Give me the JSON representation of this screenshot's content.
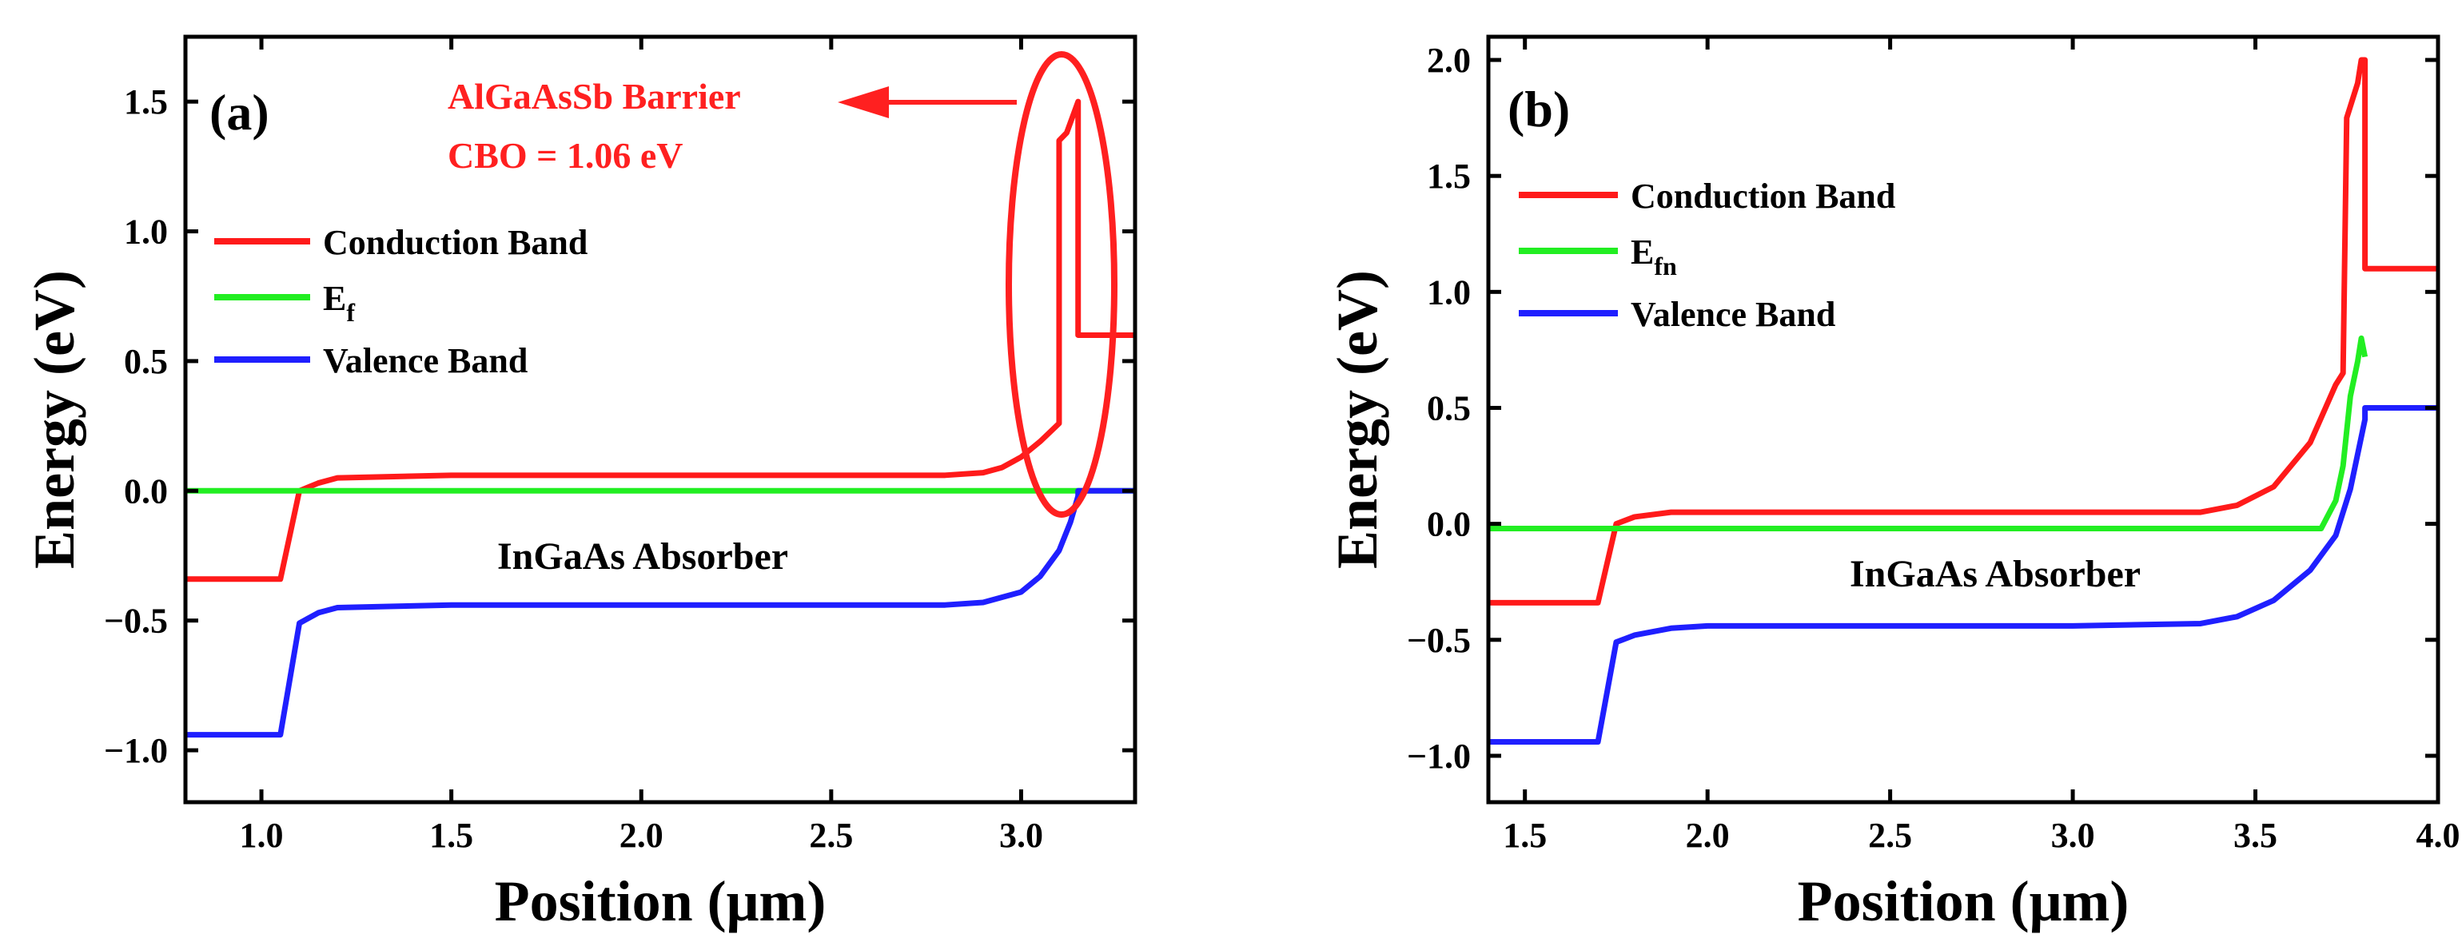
{
  "colors": {
    "conduction": "#ff1a1a",
    "fermi": "#22ee22",
    "valence": "#1f1fff",
    "annotation": "#ff2020"
  },
  "chart_data": [
    {
      "type": "line",
      "panel": "(a)",
      "xlabel": "Position (μm)",
      "ylabel": "Energy (eV)",
      "xlim": [
        0.8,
        3.3
      ],
      "ylim": [
        -1.2,
        1.75
      ],
      "xticks": [
        "1.0",
        "1.5",
        "2.0",
        "2.5",
        "3.0"
      ],
      "xtick_values": [
        1.0,
        1.5,
        2.0,
        2.5,
        3.0
      ],
      "yticks": [
        "−1.0",
        "−0.5",
        "0.0",
        "0.5",
        "1.0",
        "1.5"
      ],
      "ytick_values": [
        -1.0,
        -0.5,
        0.0,
        0.5,
        1.0,
        1.5
      ],
      "legend": {
        "conduction": "Conduction Band",
        "fermi_main": "E",
        "fermi_sub": "f",
        "valence": "Valence Band"
      },
      "annotations": {
        "region": "InGaAs Absorber",
        "barrier_line1": "AlGaAsSb Barrier",
        "barrier_line2": "CBO = 1.06 eV"
      },
      "series": [
        {
          "name": "Conduction Band",
          "color_key": "conduction",
          "x": [
            0.8,
            1.05,
            1.1,
            1.15,
            1.2,
            1.5,
            2.0,
            2.5,
            2.8,
            2.9,
            2.95,
            3.0,
            3.05,
            3.1,
            3.1,
            3.12,
            3.13,
            3.15,
            3.15,
            3.3
          ],
          "y": [
            -0.34,
            -0.34,
            0.0,
            0.03,
            0.05,
            0.06,
            0.06,
            0.06,
            0.06,
            0.07,
            0.09,
            0.13,
            0.19,
            0.26,
            1.35,
            1.38,
            1.42,
            1.5,
            0.6,
            0.6
          ]
        },
        {
          "name": "Ef",
          "color_key": "fermi",
          "x": [
            0.8,
            3.3
          ],
          "y": [
            0.0,
            0.0
          ]
        },
        {
          "name": "Valence Band",
          "color_key": "valence",
          "x": [
            0.8,
            1.05,
            1.1,
            1.15,
            1.2,
            1.5,
            2.0,
            2.5,
            2.8,
            2.9,
            3.0,
            3.05,
            3.1,
            3.13,
            3.15,
            3.15,
            3.3
          ],
          "y": [
            -0.94,
            -0.94,
            -0.51,
            -0.47,
            -0.45,
            -0.44,
            -0.44,
            -0.44,
            -0.44,
            -0.43,
            -0.39,
            -0.33,
            -0.23,
            -0.12,
            -0.02,
            0.0,
            0.0
          ]
        }
      ]
    },
    {
      "type": "line",
      "panel": "(b)",
      "xlabel": "Position (μm)",
      "ylabel": "Energy (eV)",
      "xlim": [
        1.4,
        4.0
      ],
      "ylim": [
        -1.2,
        2.1
      ],
      "xticks": [
        "1.5",
        "2.0",
        "2.5",
        "3.0",
        "3.5",
        "4.0"
      ],
      "xtick_values": [
        1.5,
        2.0,
        2.5,
        3.0,
        3.5,
        4.0
      ],
      "yticks": [
        "−1.0",
        "−0.5",
        "0.0",
        "0.5",
        "1.0",
        "1.5",
        "2.0"
      ],
      "ytick_values": [
        -1.0,
        -0.5,
        0.0,
        0.5,
        1.0,
        1.5,
        2.0
      ],
      "legend": {
        "conduction": "Conduction Band",
        "fermi_main": "E",
        "fermi_sub": "fn",
        "valence": "Valence Band"
      },
      "annotations": {
        "region": "InGaAs Absorber"
      },
      "series": [
        {
          "name": "Conduction Band",
          "color_key": "conduction",
          "x": [
            1.4,
            1.7,
            1.75,
            1.8,
            1.9,
            2.0,
            2.5,
            3.0,
            3.35,
            3.45,
            3.55,
            3.65,
            3.72,
            3.74,
            3.75,
            3.78,
            3.79,
            3.8,
            3.8,
            4.0
          ],
          "y": [
            -0.34,
            -0.34,
            0.0,
            0.03,
            0.05,
            0.05,
            0.05,
            0.05,
            0.05,
            0.08,
            0.16,
            0.35,
            0.6,
            0.65,
            1.75,
            1.9,
            2.0,
            2.0,
            1.1,
            1.1
          ]
        },
        {
          "name": "Efn",
          "color_key": "fermi",
          "x": [
            1.4,
            3.68,
            3.72,
            3.74,
            3.76,
            3.78,
            3.79,
            3.8
          ],
          "y": [
            -0.02,
            -0.02,
            0.1,
            0.25,
            0.55,
            0.7,
            0.8,
            0.72
          ]
        },
        {
          "name": "Valence Band",
          "color_key": "valence",
          "x": [
            1.4,
            1.7,
            1.75,
            1.8,
            1.9,
            2.0,
            2.5,
            3.0,
            3.35,
            3.45,
            3.55,
            3.65,
            3.72,
            3.76,
            3.8,
            3.8,
            4.0
          ],
          "y": [
            -0.94,
            -0.94,
            -0.51,
            -0.48,
            -0.45,
            -0.44,
            -0.44,
            -0.44,
            -0.43,
            -0.4,
            -0.33,
            -0.2,
            -0.05,
            0.15,
            0.45,
            0.5,
            0.5
          ]
        }
      ]
    }
  ]
}
